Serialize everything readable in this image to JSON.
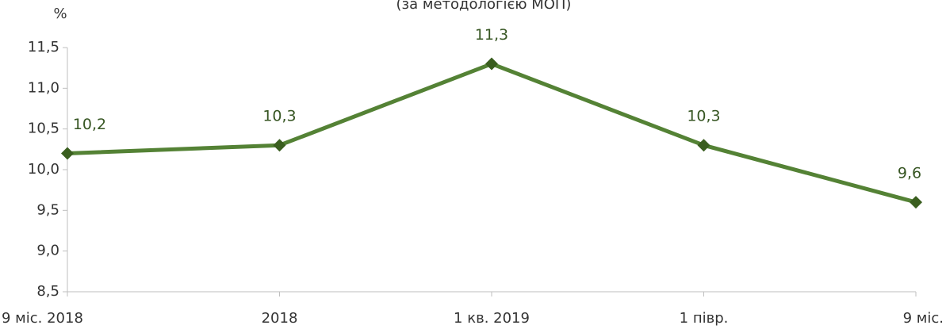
{
  "chart_data": {
    "type": "line",
    "subtitle": "(за методологією МОП)",
    "y_label": "%",
    "categories": [
      "9 міс. 2018",
      "2018",
      "1 кв. 2019",
      "1 півр.",
      "9 міс."
    ],
    "series": [
      {
        "name": "%",
        "color": "#548235",
        "marker_color": "#3a5e1f",
        "values": [
          10.2,
          10.3,
          11.3,
          10.3,
          9.6
        ],
        "value_labels": [
          "10,2",
          "10,3",
          "11,3",
          "10,3",
          "9,6"
        ]
      }
    ],
    "ylim": [
      8.5,
      11.5
    ],
    "yticks": [
      {
        "value": 8.5,
        "label": "8,5"
      },
      {
        "value": 9.0,
        "label": "9,0"
      },
      {
        "value": 9.5,
        "label": "9,5"
      },
      {
        "value": 10.0,
        "label": "10,0"
      },
      {
        "value": 10.5,
        "label": "10,5"
      },
      {
        "value": 11.0,
        "label": "11,0"
      },
      {
        "value": 11.5,
        "label": "11,5"
      }
    ],
    "grid": false
  }
}
